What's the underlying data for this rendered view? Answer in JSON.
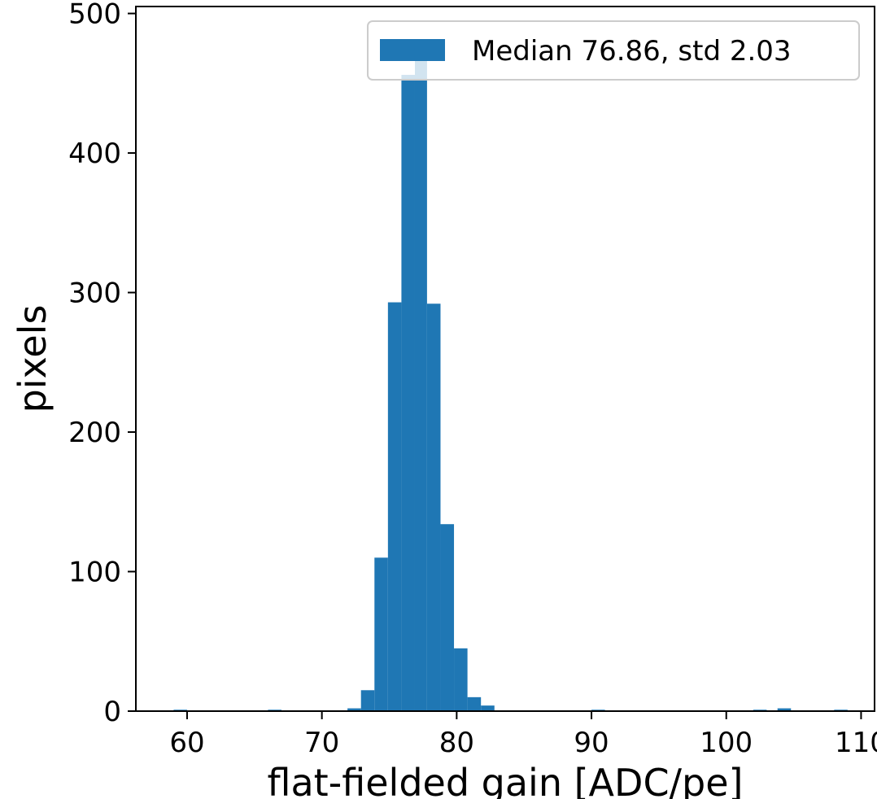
{
  "chart_data": {
    "type": "bar",
    "subtype": "histogram",
    "title": "",
    "xlabel": "flat-fielded gain [ADC/pe]",
    "ylabel": "pixels",
    "xlim": [
      56.2,
      111.0
    ],
    "ylim": [
      0,
      505
    ],
    "x_ticks": [
      60,
      70,
      80,
      90,
      100,
      110
    ],
    "x_tick_labels": [
      "60",
      "70",
      "80",
      "90",
      "100",
      "110"
    ],
    "y_ticks": [
      0,
      100,
      200,
      300,
      400,
      500
    ],
    "y_tick_labels": [
      "0",
      "100",
      "200",
      "300",
      "400",
      "500"
    ],
    "grid": false,
    "legend": {
      "placement": "top-right",
      "entries": [
        "Median 76.86, std 2.03"
      ]
    },
    "bar_color": "#1f77b4",
    "series": [
      {
        "name": "Median 76.86, std 2.03",
        "bins": [
          {
            "x0": 59.0,
            "x1": 60.0,
            "count": 1
          },
          {
            "x0": 66.0,
            "x1": 67.0,
            "count": 1
          },
          {
            "x0": 71.9,
            "x1": 72.9,
            "count": 2
          },
          {
            "x0": 72.9,
            "x1": 73.9,
            "count": 15
          },
          {
            "x0": 73.9,
            "x1": 74.9,
            "count": 110
          },
          {
            "x0": 74.9,
            "x1": 75.9,
            "count": 293
          },
          {
            "x0": 75.9,
            "x1": 76.9,
            "count": 456
          },
          {
            "x0": 76.9,
            "x1": 77.8,
            "count": 469
          },
          {
            "x0": 77.8,
            "x1": 78.8,
            "count": 292
          },
          {
            "x0": 78.8,
            "x1": 79.8,
            "count": 134
          },
          {
            "x0": 79.8,
            "x1": 80.8,
            "count": 45
          },
          {
            "x0": 80.8,
            "x1": 81.8,
            "count": 10
          },
          {
            "x0": 81.8,
            "x1": 82.8,
            "count": 4
          },
          {
            "x0": 90.0,
            "x1": 91.0,
            "count": 1
          },
          {
            "x0": 102.0,
            "x1": 103.0,
            "count": 1
          },
          {
            "x0": 103.8,
            "x1": 104.8,
            "count": 2
          },
          {
            "x0": 108.0,
            "x1": 109.0,
            "count": 1
          }
        ]
      }
    ]
  }
}
